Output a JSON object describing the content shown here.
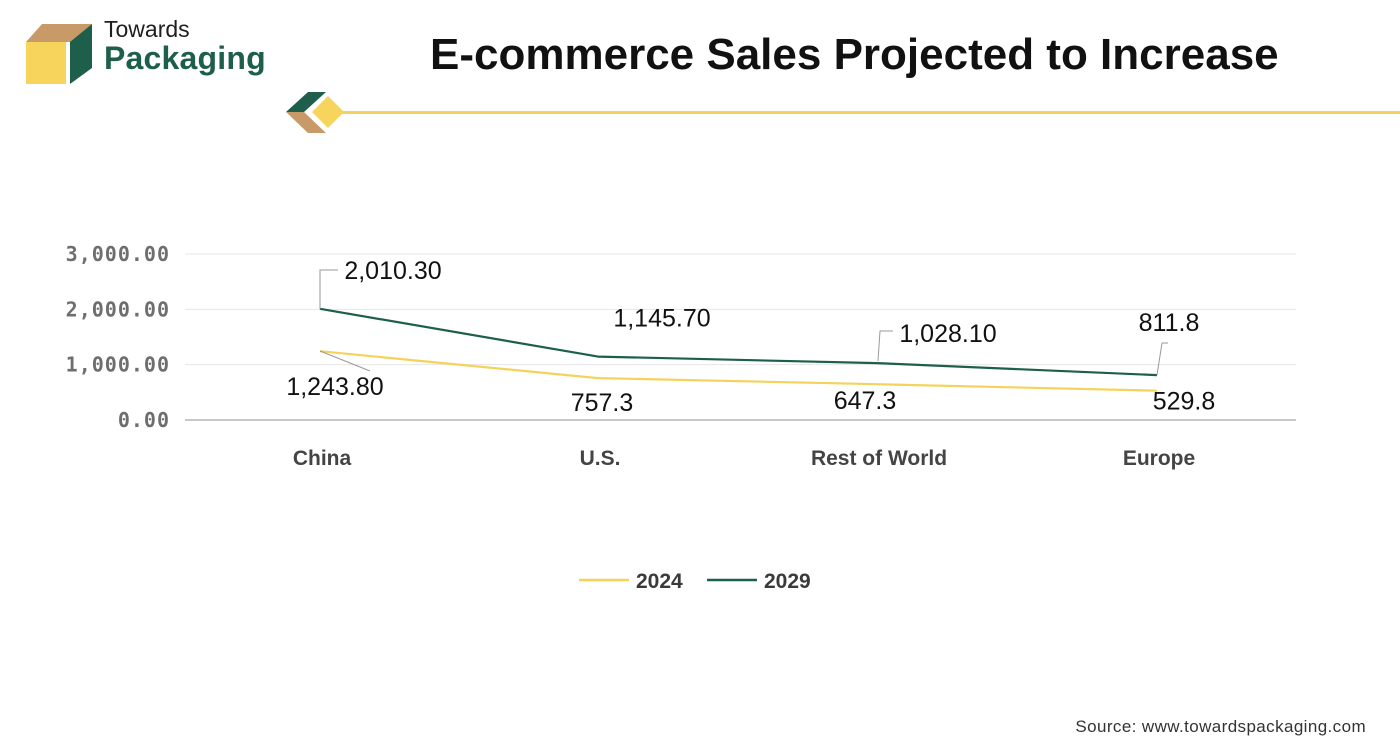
{
  "brand": {
    "line1": "Towards",
    "line2": "Packaging"
  },
  "title": "E-commerce Sales Projected to Increase",
  "source": "Source: www.towardspackaging.com",
  "colors": {
    "series_2024": "#f5d25c",
    "series_2029": "#1e5f4c",
    "brand_green": "#1e5f4c",
    "brand_tan": "#c89a68",
    "brand_yellow": "#f7d55d",
    "gridline": "#e6e6e6",
    "axis": "#b5b5b5"
  },
  "chart_data": {
    "type": "line",
    "title": "E-commerce Sales Projected to Increase",
    "categories": [
      "China",
      "U.S.",
      "Rest of World",
      "Europe"
    ],
    "series": [
      {
        "name": "2024",
        "values": [
          1243.8,
          757.3,
          647.3,
          529.8
        ],
        "labels": [
          "1,243.80",
          "757.3",
          "647.3",
          "529.8"
        ]
      },
      {
        "name": "2029",
        "values": [
          2010.3,
          1145.7,
          1028.1,
          811.8
        ],
        "labels": [
          "2,010.30",
          "1,145.70",
          "1,028.10",
          "811.8"
        ]
      }
    ],
    "yticks": [
      "0.00",
      "1,000.00",
      "2,000.00",
      "3,000.00"
    ],
    "ylim": [
      0,
      3000
    ],
    "grid": true,
    "legend": "bottom-center",
    "xlabel": "",
    "ylabel": ""
  }
}
